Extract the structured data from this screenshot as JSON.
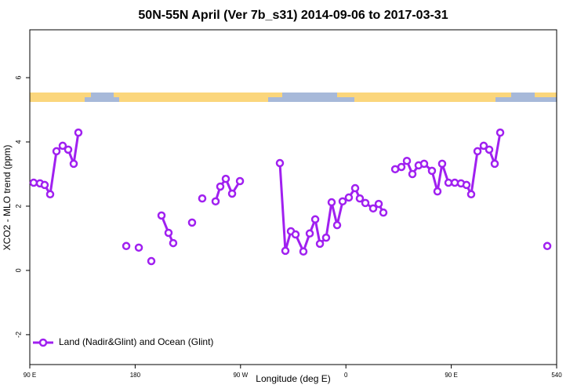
{
  "chart_data": {
    "type": "line",
    "title": "50N-55N April (Ver 7b_s31)   2014-09-06 to 2017-03-31",
    "x_label": "Longitude (deg E)",
    "y_label": "XCO2 - MLO trend (ppm)",
    "xlim": [
      90,
      540
    ],
    "xticks": [
      {
        "value": 90,
        "label": "90 E"
      },
      180,
      {
        "value": 270,
        "label": "90 W"
      },
      {
        "value": 360,
        "label": "0"
      },
      {
        "value": 450,
        "label": "90 E"
      },
      540
    ],
    "ylim": [
      -2.93,
      7.49
    ],
    "yticks": [
      -2,
      0,
      2,
      4,
      6
    ],
    "legend": "bottom-left",
    "series": [
      {
        "name": "Land (Nadir&Glint) and Ocean (Glint)",
        "color": "#a020f0",
        "x": [
          93.3,
          98.7,
          102.7,
          107.4,
          112.8,
          118.1,
          122.8,
          127.5,
          131.5,
          null,
          172.4,
          null,
          183.1,
          null,
          193.8,
          null,
          202.5,
          208.5,
          212.5,
          null,
          228.6,
          null,
          237.3,
          null,
          248.7,
          252.7,
          257.4,
          262.8,
          269.5,
          null,
          303.6,
          308.3,
          313.0,
          317.0,
          323.7,
          329.1,
          333.8,
          337.8,
          343.1,
          347.8,
          352.5,
          357.2,
          362.5,
          367.9,
          371.9,
          376.6,
          383.3,
          388.0,
          392.0,
          null,
          402.1,
          407.4,
          412.1,
          416.8,
          422.1,
          426.8,
          433.5,
          438.2,
          442.2,
          447.6,
          453.0,
          458.3,
          463.0,
          467.0,
          472.4,
          477.7,
          482.4,
          487.1,
          491.8,
          null,
          532.0
        ],
        "values": [
          2.73,
          2.71,
          2.66,
          2.37,
          3.71,
          3.88,
          3.76,
          3.32,
          4.29,
          null,
          0.76,
          null,
          0.71,
          null,
          0.29,
          null,
          1.71,
          1.17,
          0.85,
          null,
          1.49,
          null,
          2.24,
          null,
          2.15,
          2.61,
          2.85,
          2.39,
          2.78,
          null,
          3.34,
          0.61,
          1.22,
          1.12,
          0.59,
          1.15,
          1.59,
          0.83,
          1.02,
          2.12,
          1.41,
          2.15,
          2.27,
          2.56,
          2.24,
          2.1,
          1.93,
          2.07,
          1.8,
          null,
          3.15,
          3.22,
          3.41,
          3.0,
          3.27,
          3.32,
          3.1,
          2.46,
          3.32,
          2.73,
          2.73,
          2.71,
          2.66,
          2.37,
          3.71,
          3.88,
          3.76,
          3.32,
          4.29,
          null,
          0.76
        ]
      }
    ]
  }
}
